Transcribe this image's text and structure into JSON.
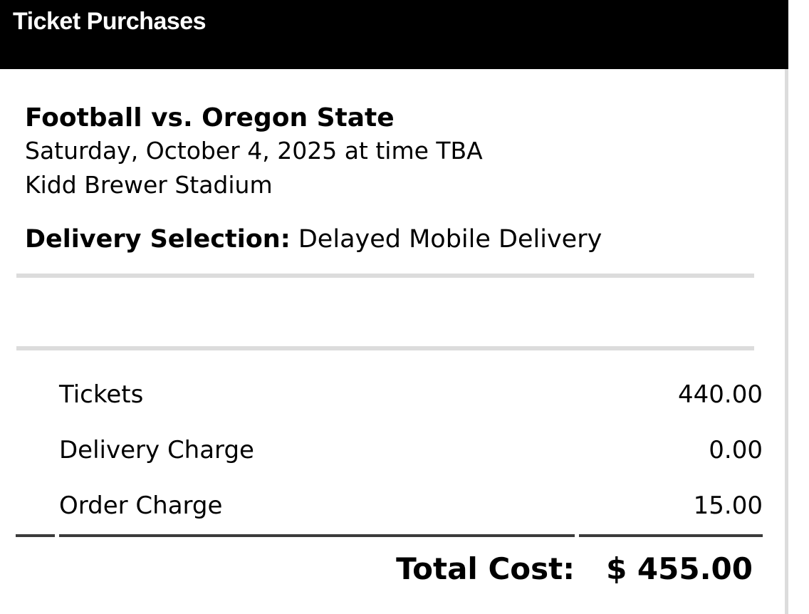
{
  "header": {
    "title": "Ticket Purchases"
  },
  "event": {
    "name": "Football vs. Oregon State",
    "datetime": "Saturday, October 4, 2025 at time TBA",
    "venue": "Kidd Brewer Stadium"
  },
  "delivery": {
    "label": "Delivery Selection:",
    "value": "Delayed Mobile Delivery"
  },
  "charges": {
    "rows": [
      {
        "label": "Tickets",
        "amount": "440.00"
      },
      {
        "label": "Delivery Charge",
        "amount": "0.00"
      },
      {
        "label": "Order Charge",
        "amount": "15.00"
      }
    ],
    "total_label": "Total Cost:",
    "total_amount": "$ 455.00"
  },
  "colors": {
    "header_bg": "#000000",
    "header_text": "#ffffff",
    "text": "#000000",
    "divider": "#dcdcdc",
    "total_rule": "#3b3b3b"
  }
}
